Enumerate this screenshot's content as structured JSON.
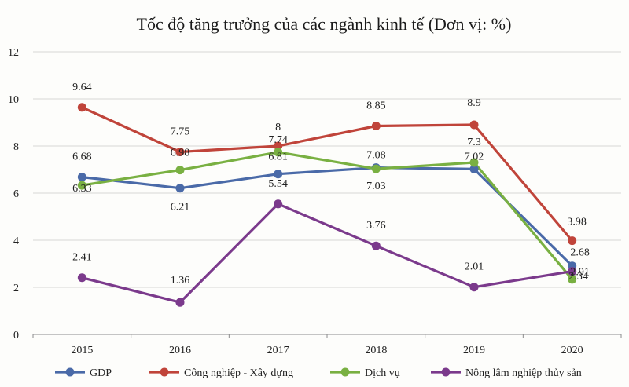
{
  "chart_data": {
    "type": "line",
    "title": "Tốc độ tăng trưởng của các ngành kinh tế  (Đơn vị: %)",
    "xlabel": "",
    "ylabel": "",
    "categories": [
      "2015",
      "2016",
      "2017",
      "2018",
      "2019",
      "2020"
    ],
    "ylim": [
      0,
      12
    ],
    "yticks": [
      0,
      2,
      4,
      6,
      8,
      10,
      12
    ],
    "grid": true,
    "legend_position": "bottom",
    "series": [
      {
        "name": "GDP",
        "color": "#4a6aa8",
        "values": [
          6.68,
          6.21,
          6.81,
          7.08,
          7.02,
          2.91
        ],
        "labels": [
          "6.68",
          "6.21",
          "6.81",
          "7.08",
          "7.02",
          "2.91"
        ]
      },
      {
        "name": "Công nghiệp - Xây dựng",
        "color": "#c0443a",
        "values": [
          9.64,
          7.75,
          8.0,
          8.85,
          8.9,
          3.98
        ],
        "labels": [
          "9.64",
          "7.75",
          "8",
          "8.85",
          "8.9",
          "3.98"
        ]
      },
      {
        "name": "Dịch vụ",
        "color": "#79b042",
        "values": [
          6.33,
          6.98,
          7.74,
          7.03,
          7.3,
          2.34
        ],
        "labels": [
          "6.33",
          "6.98",
          "7.74",
          "7.03",
          "7.3",
          "2.34"
        ]
      },
      {
        "name": "Nông  lâm nghiệp thủy sản",
        "color": "#7b3a8c",
        "values": [
          2.41,
          1.36,
          5.54,
          3.76,
          2.01,
          2.68
        ],
        "labels": [
          "2.41",
          "1.36",
          "5.54",
          "3.76",
          "2.01",
          "2.68"
        ]
      }
    ]
  }
}
